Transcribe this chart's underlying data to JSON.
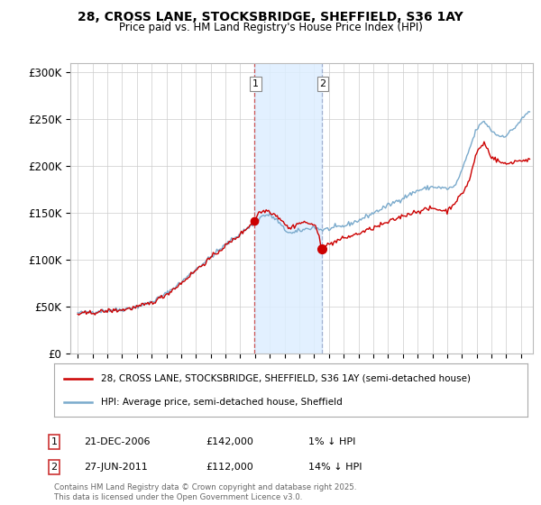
{
  "title1": "28, CROSS LANE, STOCKSBRIDGE, SHEFFIELD, S36 1AY",
  "title2": "Price paid vs. HM Land Registry's House Price Index (HPI)",
  "xlim_start": 1994.5,
  "xlim_end": 2025.8,
  "ylim_min": 0,
  "ylim_max": 310000,
  "yticks": [
    0,
    50000,
    100000,
    150000,
    200000,
    250000,
    300000
  ],
  "ytick_labels": [
    "£0",
    "£50K",
    "£100K",
    "£150K",
    "£200K",
    "£250K",
    "£300K"
  ],
  "legend_line1": "28, CROSS LANE, STOCKSBRIDGE, SHEFFIELD, S36 1AY (semi-detached house)",
  "legend_line2": "HPI: Average price, semi-detached house, Sheffield",
  "sale1_date": "21-DEC-2006",
  "sale1_price": "£142,000",
  "sale1_hpi": "1% ↓ HPI",
  "sale2_date": "27-JUN-2011",
  "sale2_price": "£112,000",
  "sale2_hpi": "14% ↓ HPI",
  "footnote": "Contains HM Land Registry data © Crown copyright and database right 2025.\nThis data is licensed under the Open Government Licence v3.0.",
  "sale1_x": 2006.97,
  "sale1_y": 142000,
  "sale2_x": 2011.5,
  "sale2_y": 112000,
  "color_property": "#cc0000",
  "color_hpi": "#7aaacc",
  "background": "#ffffff",
  "grid_color": "#cccccc",
  "shade_color": "#ddeeff"
}
